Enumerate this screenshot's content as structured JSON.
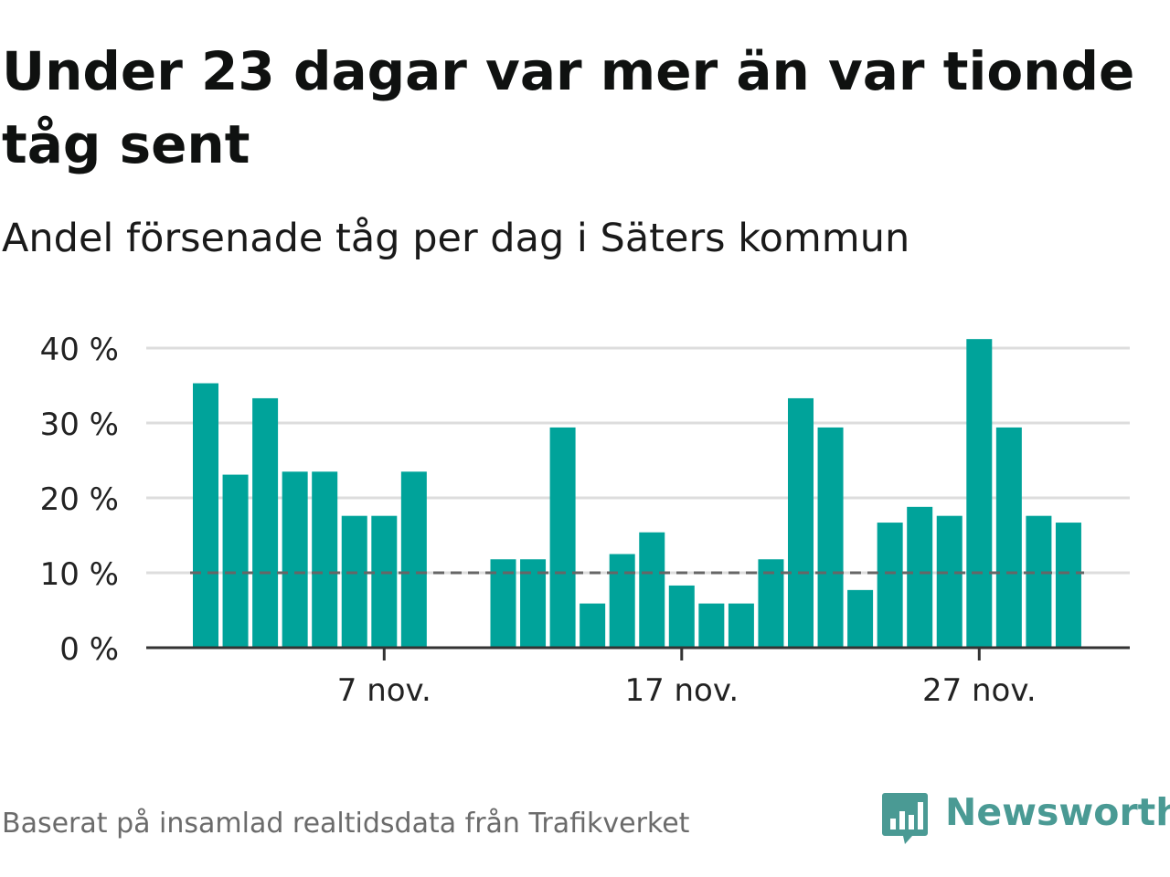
{
  "title": "Under 23 dagar var mer än var tionde tåg sent",
  "subtitle": "Andel försenade tåg per dag i Säters kommun",
  "footer": "Baserat på insamlad realtidsdata från Trafikverket",
  "brand": {
    "name": "Newsworthy",
    "color": "#4a9a94",
    "icon": "bar-chart-speech-bubble-icon"
  },
  "colors": {
    "bar": "#00a39a",
    "grid": "#dddddd",
    "axis": "#333333",
    "reference": "#666666"
  },
  "chart_data": {
    "type": "bar",
    "title": "Under 23 dagar var mer än var tionde tåg sent",
    "subtitle": "Andel försenade tåg per dag i Säters kommun",
    "xlabel": "",
    "ylabel": "",
    "x": [
      "1 nov.",
      "2 nov.",
      "3 nov.",
      "4 nov.",
      "5 nov.",
      "6 nov.",
      "7 nov.",
      "8 nov.",
      "9 nov.",
      "10 nov.",
      "11 nov.",
      "12 nov.",
      "13 nov.",
      "14 nov.",
      "15 nov.",
      "16 nov.",
      "17 nov.",
      "18 nov.",
      "19 nov.",
      "20 nov.",
      "21 nov.",
      "22 nov.",
      "23 nov.",
      "24 nov.",
      "25 nov.",
      "26 nov.",
      "27 nov.",
      "28 nov.",
      "29 nov.",
      "30 nov."
    ],
    "values": [
      35.3,
      23.1,
      33.3,
      23.5,
      23.5,
      17.6,
      17.6,
      23.5,
      null,
      null,
      11.8,
      11.8,
      29.4,
      5.9,
      12.5,
      15.4,
      8.3,
      5.9,
      5.9,
      11.8,
      33.3,
      29.4,
      7.7,
      16.7,
      18.8,
      17.6,
      41.2,
      29.4,
      17.6,
      16.7
    ],
    "xtick_labels": [
      "7 nov.",
      "17 nov.",
      "27 nov."
    ],
    "yticks": [
      0,
      10,
      20,
      30,
      40
    ],
    "ytick_labels": [
      "0 %",
      "10 %",
      "20 %",
      "30 %",
      "40 %"
    ],
    "ylim": [
      0,
      40
    ],
    "reference_line": {
      "value": 10,
      "style": "dashed"
    },
    "grid": true,
    "legend": false
  }
}
